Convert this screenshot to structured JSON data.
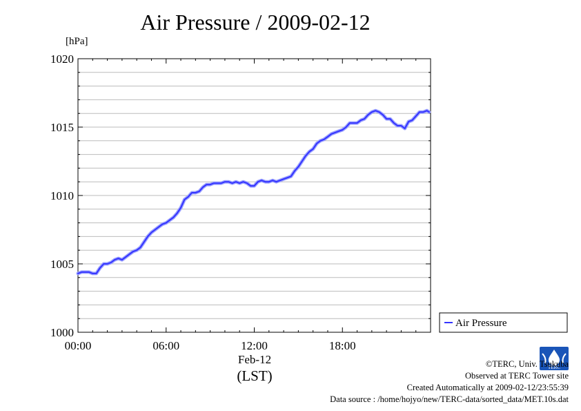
{
  "title": "Air Pressure / 2009-02-12",
  "unit_label": "[hPa]",
  "date_label": "Feb-12",
  "tz_label": "(LST)",
  "legend_label": "Air Pressure",
  "credits": {
    "copyright": "©TERC, Univ. Tsukuba",
    "observed": "Observed at TERC Tower site",
    "created": "Created Automatically at 2009-02-12/23:55:39",
    "source": "Data source : /home/hojyo/new/TERC-data/sorted_data/MET.10s.dat"
  },
  "logo_text": "TERC",
  "colors": {
    "series": "#3333ff",
    "grid": "#bbbbbb",
    "axis": "#000000"
  },
  "chart_data": {
    "type": "line",
    "title": "Air Pressure / 2009-02-12",
    "ylabel": "[hPa]",
    "xlabel": "(LST)",
    "xlim": [
      0,
      24
    ],
    "ylim": [
      1000,
      1020
    ],
    "x_ticks": [
      0,
      6,
      12,
      18
    ],
    "x_tick_labels": [
      "00:00",
      "06:00",
      "12:00",
      "18:00"
    ],
    "y_ticks": [
      1000,
      1005,
      1010,
      1015,
      1020
    ],
    "y_tick_labels": [
      "1000",
      "1005",
      "1010",
      "1015",
      "1020"
    ],
    "y_minor_step": 1,
    "grid": true,
    "legend_position": "right",
    "series": [
      {
        "name": "Air Pressure",
        "x": [
          0,
          0.25,
          0.5,
          0.75,
          1.0,
          1.25,
          1.5,
          1.75,
          2.0,
          2.25,
          2.5,
          2.75,
          3.0,
          3.25,
          3.5,
          3.75,
          4.0,
          4.25,
          4.5,
          4.75,
          5.0,
          5.25,
          5.5,
          5.75,
          6.0,
          6.25,
          6.5,
          6.75,
          7.0,
          7.25,
          7.5,
          7.75,
          8.0,
          8.25,
          8.5,
          8.75,
          9.0,
          9.25,
          9.5,
          9.75,
          10.0,
          10.25,
          10.5,
          10.75,
          11.0,
          11.25,
          11.5,
          11.75,
          12.0,
          12.25,
          12.5,
          12.75,
          13.0,
          13.25,
          13.5,
          13.75,
          14.0,
          14.25,
          14.5,
          14.75,
          15.0,
          15.25,
          15.5,
          15.75,
          16.0,
          16.25,
          16.5,
          16.75,
          17.0,
          17.25,
          17.5,
          17.75,
          18.0,
          18.25,
          18.5,
          18.75,
          19.0,
          19.25,
          19.5,
          19.75,
          20.0,
          20.25,
          20.5,
          20.75,
          21.0,
          21.25,
          21.5,
          21.75,
          22.0,
          22.25,
          22.5,
          22.75,
          23.0,
          23.25,
          23.5,
          23.75,
          23.9
        ],
        "values": [
          1004.3,
          1004.4,
          1004.4,
          1004.4,
          1004.3,
          1004.3,
          1004.7,
          1005.0,
          1005.0,
          1005.1,
          1005.3,
          1005.4,
          1005.3,
          1005.5,
          1005.7,
          1005.9,
          1006.0,
          1006.2,
          1006.6,
          1007.0,
          1007.3,
          1007.5,
          1007.7,
          1007.9,
          1008.0,
          1008.2,
          1008.4,
          1008.7,
          1009.1,
          1009.7,
          1009.9,
          1010.2,
          1010.2,
          1010.3,
          1010.6,
          1010.8,
          1010.8,
          1010.9,
          1010.9,
          1010.9,
          1011.0,
          1011.0,
          1010.9,
          1011.0,
          1010.9,
          1011.0,
          1010.9,
          1010.7,
          1010.7,
          1011.0,
          1011.1,
          1011.0,
          1011.0,
          1011.1,
          1011.0,
          1011.1,
          1011.2,
          1011.3,
          1011.4,
          1011.8,
          1012.1,
          1012.5,
          1012.9,
          1013.2,
          1013.4,
          1013.8,
          1014.0,
          1014.1,
          1014.3,
          1014.5,
          1014.6,
          1014.7,
          1014.8,
          1015.0,
          1015.3,
          1015.3,
          1015.3,
          1015.5,
          1015.6,
          1015.9,
          1016.1,
          1016.2,
          1016.1,
          1015.9,
          1015.6,
          1015.6,
          1015.3,
          1015.1,
          1015.1,
          1014.9,
          1015.4,
          1015.5,
          1015.8,
          1016.1,
          1016.1,
          1016.2,
          1016.1
        ]
      }
    ]
  }
}
